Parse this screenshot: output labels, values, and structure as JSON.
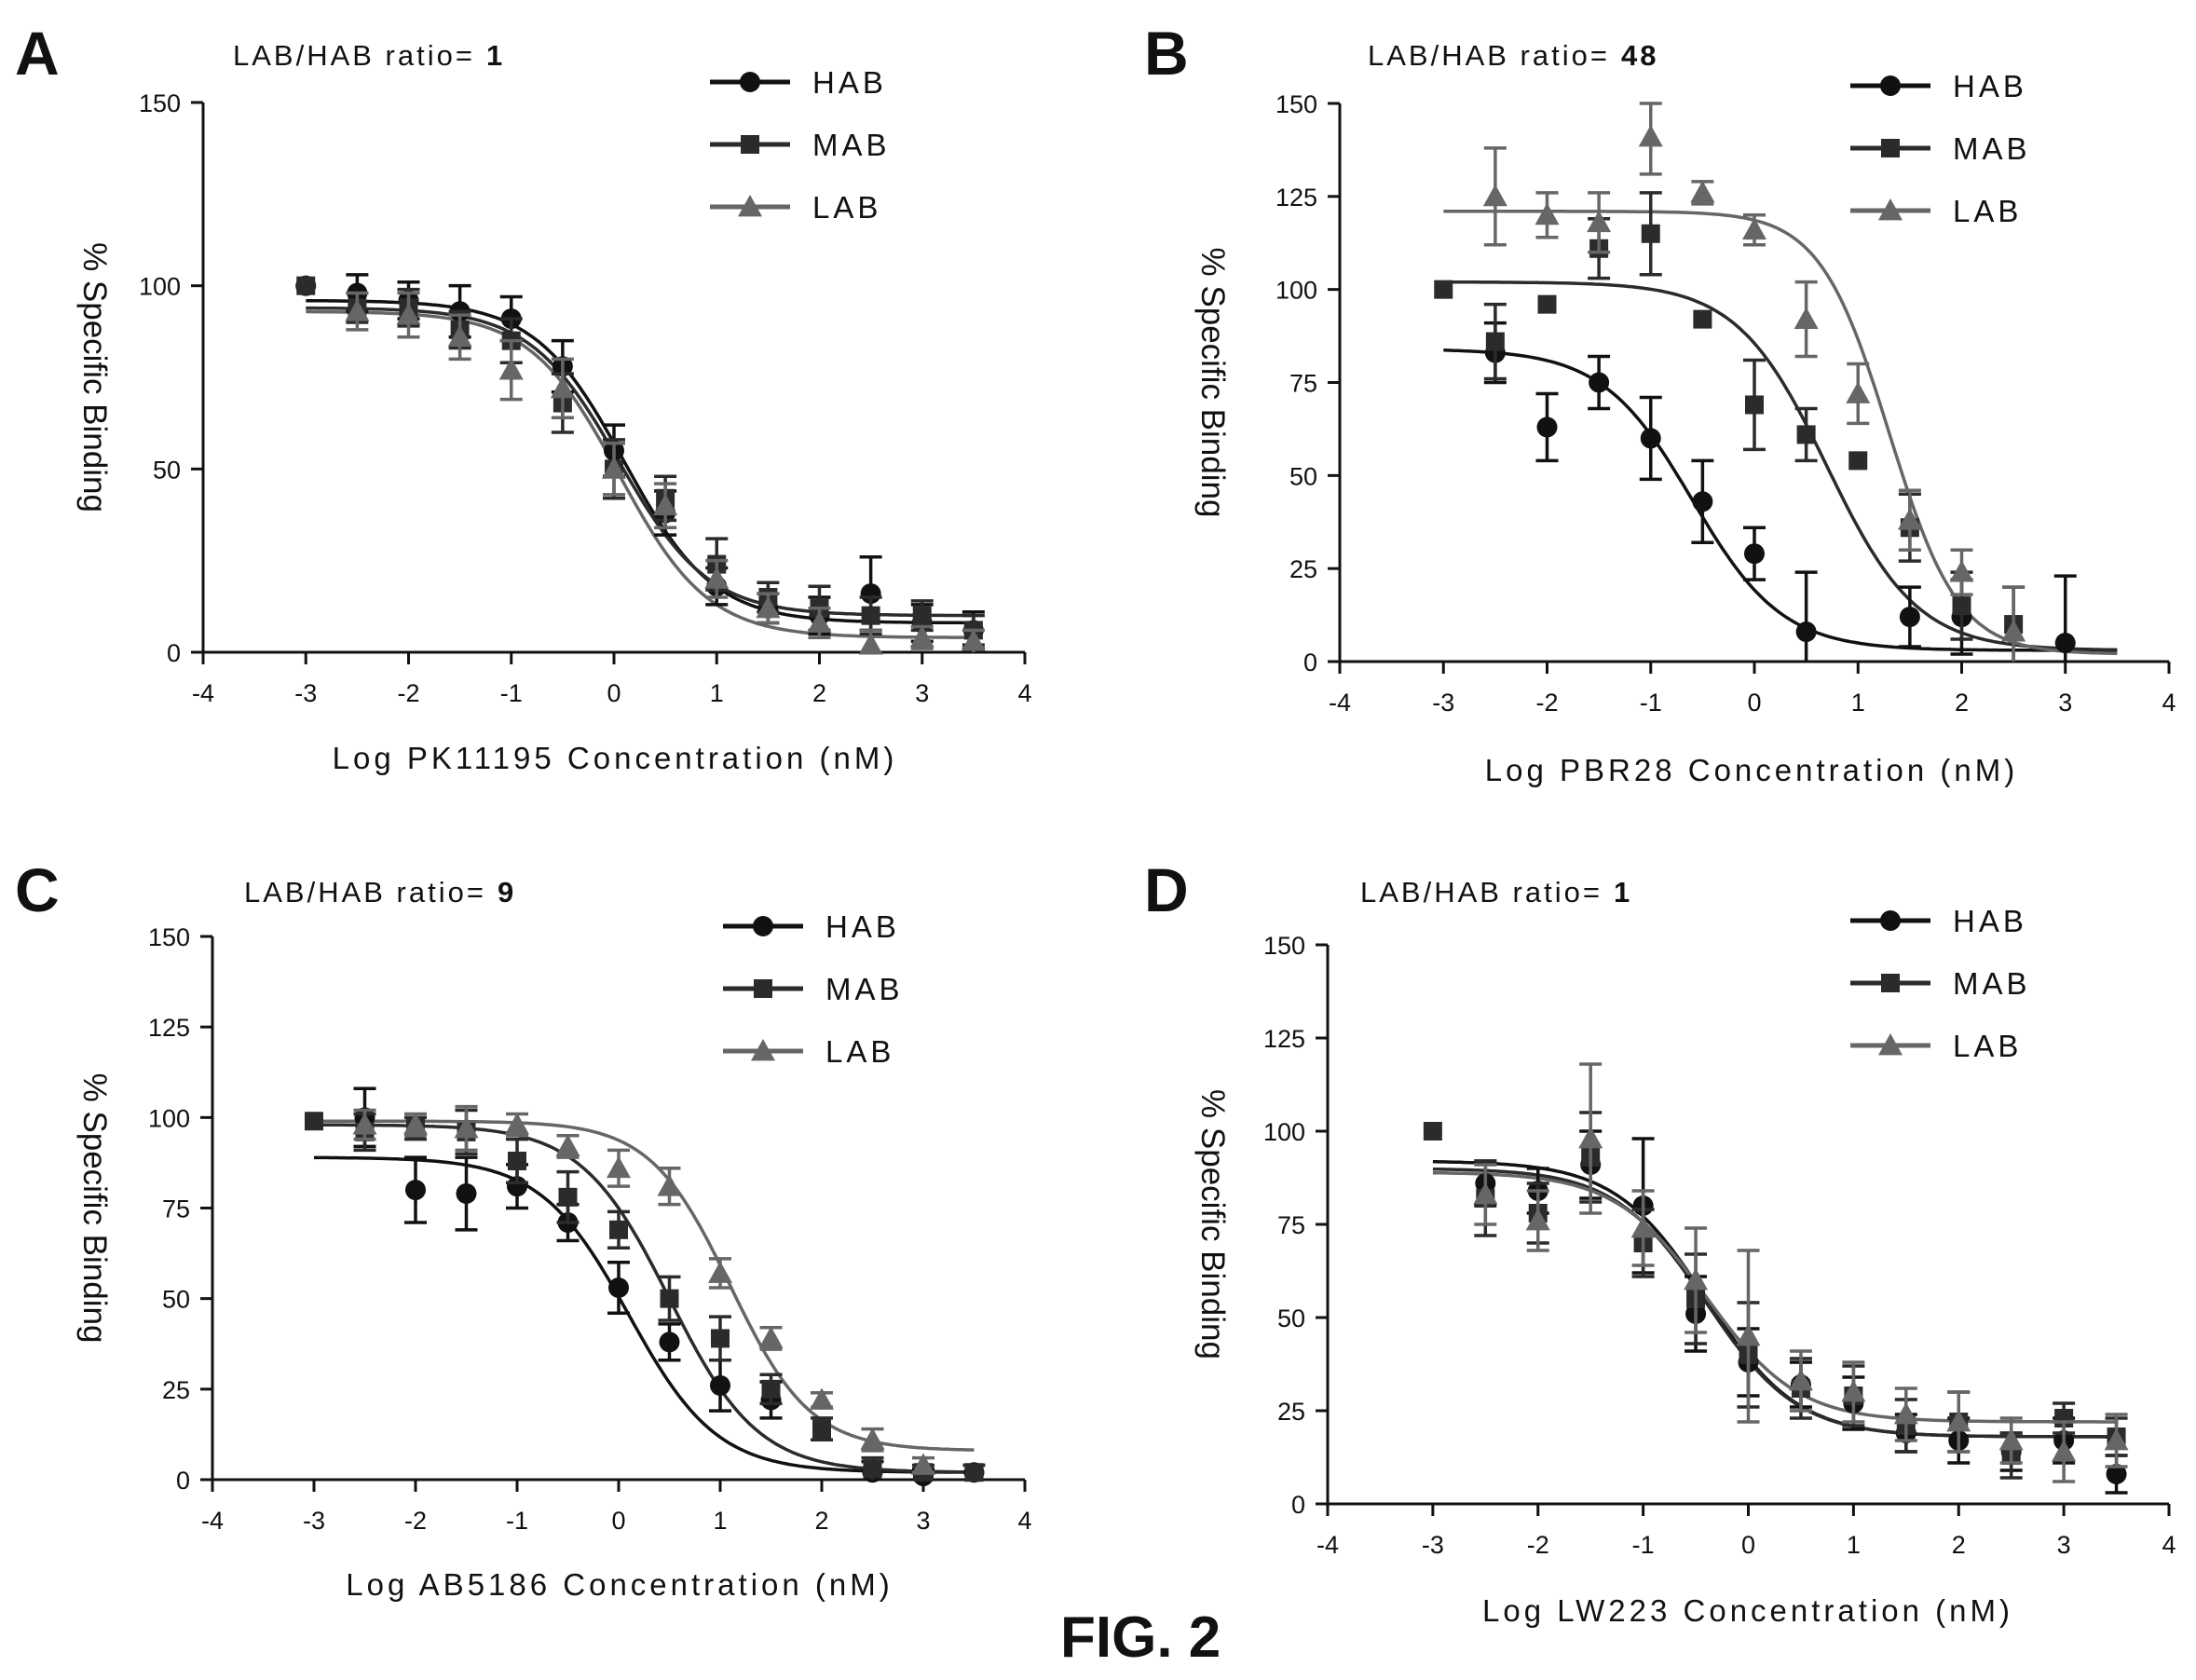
{
  "figure": {
    "caption": "FIG. 2"
  },
  "colors": {
    "HAB": "#111111",
    "MAB": "#2b2b2b",
    "LAB": "#666666",
    "axis": "#111111"
  },
  "chart_data": [
    {
      "type": "scatter",
      "panel": "A",
      "ratio_label": "LAB/HAB ratio=",
      "ratio_value": "1",
      "xlabel": "Log PK11195 Concentration (nM)",
      "ylabel": "% Specific Binding",
      "xlim": [
        -4,
        4
      ],
      "ylim": [
        0,
        150
      ],
      "xticks": [
        -4,
        -3,
        -2,
        -1,
        0,
        1,
        2,
        3,
        4
      ],
      "yticks": [
        0,
        50,
        100,
        150
      ],
      "legend": "top-right",
      "series": [
        {
          "name": "HAB",
          "marker": "circle",
          "points": [
            [
              -3,
              100,
              0
            ],
            [
              -2.5,
              98,
              5
            ],
            [
              -2,
              96,
              5
            ],
            [
              -1.5,
              93,
              7
            ],
            [
              -1,
              91,
              6
            ],
            [
              -0.5,
              78,
              7
            ],
            [
              0,
              55,
              7
            ],
            [
              0.5,
              38,
              6
            ],
            [
              1,
              18,
              5
            ],
            [
              1.5,
              12,
              4
            ],
            [
              2,
              10,
              5
            ],
            [
              2.5,
              16,
              10
            ],
            [
              3,
              8,
              5
            ],
            [
              3.5,
              6,
              5
            ]
          ],
          "fit": {
            "top": 96,
            "bottom": 8,
            "logec50": 0.1,
            "slope": 1
          }
        },
        {
          "name": "MAB",
          "marker": "square",
          "points": [
            [
              -3,
              100,
              0
            ],
            [
              -2.5,
              94,
              4
            ],
            [
              -2,
              94,
              5
            ],
            [
              -1.5,
              88,
              5
            ],
            [
              -1,
              85,
              6
            ],
            [
              -0.5,
              68,
              8
            ],
            [
              0,
              50,
              8
            ],
            [
              0.5,
              42,
              6
            ],
            [
              1,
              24,
              7
            ],
            [
              1.5,
              15,
              4
            ],
            [
              2,
              12,
              6
            ],
            [
              2.5,
              10,
              5
            ],
            [
              3,
              10,
              4
            ],
            [
              3.5,
              6,
              4
            ]
          ],
          "fit": {
            "top": 94,
            "bottom": 10,
            "logec50": 0.05,
            "slope": 1
          }
        },
        {
          "name": "LAB",
          "marker": "triangle",
          "points": [
            [
              -2.5,
              93,
              5
            ],
            [
              -2,
              92,
              6
            ],
            [
              -1.5,
              86,
              6
            ],
            [
              -1,
              77,
              8
            ],
            [
              -0.5,
              72,
              8
            ],
            [
              0,
              50,
              7
            ],
            [
              0.5,
              40,
              6
            ],
            [
              1,
              20,
              5
            ],
            [
              1.5,
              12,
              4
            ],
            [
              2,
              8,
              4
            ],
            [
              2.5,
              2,
              4
            ],
            [
              3,
              4,
              3
            ],
            [
              3.5,
              3,
              3
            ]
          ],
          "fit": {
            "top": 93,
            "bottom": 4,
            "logec50": 0.05,
            "slope": 1
          }
        }
      ]
    },
    {
      "type": "scatter",
      "panel": "B",
      "ratio_label": "LAB/HAB ratio=",
      "ratio_value": "48",
      "xlabel": "Log PBR28 Concentration (nM)",
      "ylabel": "% Specific Binding",
      "xlim": [
        -4,
        4
      ],
      "ylim": [
        0,
        150
      ],
      "xticks": [
        -4,
        -3,
        -2,
        -1,
        0,
        1,
        2,
        3,
        4
      ],
      "yticks": [
        0,
        25,
        50,
        75,
        100,
        125,
        150
      ],
      "legend": "top-right",
      "series": [
        {
          "name": "HAB",
          "marker": "circle",
          "points": [
            [
              -2.5,
              83,
              8
            ],
            [
              -2,
              63,
              9
            ],
            [
              -1.5,
              75,
              7
            ],
            [
              -1,
              60,
              11
            ],
            [
              -0.5,
              43,
              11
            ],
            [
              0,
              29,
              7
            ],
            [
              0.5,
              8,
              16
            ],
            [
              1.5,
              12,
              8
            ],
            [
              2,
              12,
              10
            ],
            [
              3,
              5,
              18
            ]
          ],
          "fit": {
            "top": 84,
            "bottom": 3,
            "logec50": -0.6,
            "slope": 1
          }
        },
        {
          "name": "MAB",
          "marker": "square",
          "points": [
            [
              -3,
              100,
              0
            ],
            [
              -2.5,
              86,
              10
            ],
            [
              -2,
              96,
              0
            ],
            [
              -1.5,
              111,
              8
            ],
            [
              -1,
              115,
              11
            ],
            [
              -0.5,
              92,
              0
            ],
            [
              0,
              69,
              12
            ],
            [
              0.5,
              61,
              7
            ],
            [
              1,
              54,
              0
            ],
            [
              1.5,
              36,
              9
            ],
            [
              2,
              15,
              9
            ],
            [
              2.5,
              10,
              10
            ]
          ],
          "fit": {
            "top": 102,
            "bottom": 3,
            "logec50": 0.7,
            "slope": 1
          }
        },
        {
          "name": "LAB",
          "marker": "triangle",
          "points": [
            [
              -2.5,
              125,
              13
            ],
            [
              -2,
              120,
              6
            ],
            [
              -1.5,
              118,
              8
            ],
            [
              -1,
              141,
              10
            ],
            [
              -0.5,
              126,
              3
            ],
            [
              0,
              116,
              4
            ],
            [
              0.5,
              92,
              10
            ],
            [
              1,
              72,
              8
            ],
            [
              1.5,
              38,
              8
            ],
            [
              2,
              24,
              6
            ],
            [
              2.5,
              8,
              12
            ]
          ],
          "fit": {
            "top": 121,
            "bottom": 2,
            "logec50": 1.3,
            "slope": 1.3
          }
        }
      ]
    },
    {
      "type": "scatter",
      "panel": "C",
      "ratio_label": "LAB/HAB ratio=",
      "ratio_value": "9",
      "xlabel": "Log AB5186 Concentration (nM)",
      "ylabel": "% Specific Binding",
      "xlim": [
        -4,
        4
      ],
      "ylim": [
        0,
        150
      ],
      "xticks": [
        -4,
        -3,
        -2,
        -1,
        0,
        1,
        2,
        3,
        4
      ],
      "yticks": [
        0,
        25,
        50,
        75,
        100,
        125,
        150
      ],
      "legend": "top-right",
      "series": [
        {
          "name": "HAB",
          "marker": "circle",
          "points": [
            [
              -2.5,
              100,
              8
            ],
            [
              -2,
              80,
              9
            ],
            [
              -1.5,
              79,
              10
            ],
            [
              -1,
              81,
              6
            ],
            [
              -0.5,
              71,
              5
            ],
            [
              0,
              53,
              7
            ],
            [
              0.5,
              38,
              5
            ],
            [
              1,
              26,
              7
            ],
            [
              1.5,
              22,
              5
            ],
            [
              2.5,
              2,
              3
            ],
            [
              3,
              1,
              2
            ],
            [
              3.5,
              2,
              2
            ]
          ],
          "fit": {
            "top": 89,
            "bottom": 2,
            "logec50": 0.1,
            "slope": 1
          }
        },
        {
          "name": "MAB",
          "marker": "square",
          "points": [
            [
              -3,
              99,
              0
            ],
            [
              -2.5,
              96,
              5
            ],
            [
              -2,
              97,
              3
            ],
            [
              -1.5,
              96,
              6
            ],
            [
              -1,
              88,
              6
            ],
            [
              -0.5,
              78,
              7
            ],
            [
              0,
              69,
              5
            ],
            [
              0.5,
              50,
              6
            ],
            [
              1,
              39,
              6
            ],
            [
              1.5,
              25,
              4
            ],
            [
              2,
              14,
              3
            ],
            [
              2.5,
              3,
              3
            ],
            [
              3,
              2,
              2
            ],
            [
              3.5,
              2,
              2
            ]
          ],
          "fit": {
            "top": 98,
            "bottom": 2,
            "logec50": 0.5,
            "slope": 1
          }
        },
        {
          "name": "LAB",
          "marker": "triangle",
          "points": [
            [
              -2.5,
              98,
              4
            ],
            [
              -2,
              98,
              3
            ],
            [
              -1.5,
              97,
              6
            ],
            [
              -1,
              98,
              3
            ],
            [
              -0.5,
              92,
              3
            ],
            [
              0,
              86,
              5
            ],
            [
              0.5,
              81,
              5
            ],
            [
              1,
              57,
              4
            ],
            [
              1.5,
              39,
              3
            ],
            [
              2,
              22,
              2
            ],
            [
              2.5,
              11,
              3
            ],
            [
              3,
              4,
              2
            ]
          ],
          "fit": {
            "top": 99,
            "bottom": 8,
            "logec50": 1.1,
            "slope": 1.1
          }
        }
      ]
    },
    {
      "type": "scatter",
      "panel": "D",
      "ratio_label": "LAB/HAB ratio=",
      "ratio_value": "1",
      "xlabel": "Log LW223 Concentration (nM)",
      "ylabel": "% Specific Binding",
      "xlim": [
        -4,
        4
      ],
      "ylim": [
        0,
        150
      ],
      "xticks": [
        -4,
        -3,
        -2,
        -1,
        0,
        1,
        2,
        3,
        4
      ],
      "yticks": [
        0,
        25,
        50,
        75,
        100,
        125,
        150
      ],
      "legend": "top-right",
      "series": [
        {
          "name": "HAB",
          "marker": "circle",
          "points": [
            [
              -2.5,
              86,
              6
            ],
            [
              -2,
              84,
              6
            ],
            [
              -1.5,
              91,
              9
            ],
            [
              -1,
              80,
              18
            ],
            [
              -0.5,
              51,
              10
            ],
            [
              0,
              38,
              9
            ],
            [
              0.5,
              32,
              6
            ],
            [
              1,
              27,
              7
            ],
            [
              1.5,
              19,
              5
            ],
            [
              2,
              17,
              6
            ],
            [
              2.5,
              14,
              5
            ],
            [
              3,
              17,
              6
            ],
            [
              3.5,
              8,
              5
            ]
          ],
          "fit": {
            "top": 92,
            "bottom": 18,
            "logec50": -0.4,
            "slope": 1
          }
        },
        {
          "name": "MAB",
          "marker": "square",
          "points": [
            [
              -3,
              100,
              0
            ],
            [
              -2.5,
              82,
              10
            ],
            [
              -2,
              78,
              8
            ],
            [
              -1.5,
              93,
              12
            ],
            [
              -1,
              70,
              9
            ],
            [
              -0.5,
              55,
              12
            ],
            [
              0,
              40,
              14
            ],
            [
              0.5,
              31,
              8
            ],
            [
              1,
              29,
              8
            ],
            [
              1.5,
              21,
              7
            ],
            [
              2,
              22,
              8
            ],
            [
              2.5,
              13,
              6
            ],
            [
              3,
              23,
              4
            ],
            [
              3.5,
              18,
              5
            ]
          ],
          "fit": {
            "top": 90,
            "bottom": 18,
            "logec50": -0.4,
            "slope": 1
          }
        },
        {
          "name": "LAB",
          "marker": "triangle",
          "points": [
            [
              -2.5,
              83,
              8
            ],
            [
              -2,
              76,
              8
            ],
            [
              -1.5,
              98,
              20
            ],
            [
              -1,
              74,
              10
            ],
            [
              -0.5,
              60,
              14
            ],
            [
              0,
              45,
              23
            ],
            [
              0.5,
              33,
              8
            ],
            [
              1,
              30,
              8
            ],
            [
              1.5,
              24,
              7
            ],
            [
              2,
              22,
              8
            ],
            [
              2.5,
              17,
              6
            ],
            [
              3,
              14,
              8
            ],
            [
              3.5,
              17,
              7
            ]
          ],
          "fit": {
            "top": 89,
            "bottom": 22,
            "logec50": -0.4,
            "slope": 1
          }
        }
      ]
    }
  ]
}
